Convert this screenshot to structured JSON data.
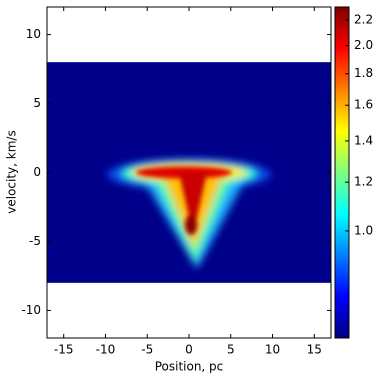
{
  "chart_data": {
    "type": "heatmap",
    "xlabel": "Position, pc",
    "ylabel": "velocity, km/s",
    "xlim": [
      -17,
      17
    ],
    "ylim": [
      -12,
      12
    ],
    "xticks": [
      -15,
      -10,
      -5,
      0,
      5,
      10,
      15
    ],
    "yticks": [
      -10,
      -5,
      0,
      5,
      10
    ],
    "extent_y": [
      -8,
      8
    ],
    "colorbar": {
      "clim": [
        0.67,
        2.31
      ],
      "log": true,
      "colormap": "jet",
      "ticks": [
        {
          "value": 1,
          "label": "1.0"
        },
        1.2,
        1.4,
        1.6,
        1.8,
        {
          "value": 2,
          "label": "2.0"
        },
        2.2
      ]
    }
  }
}
